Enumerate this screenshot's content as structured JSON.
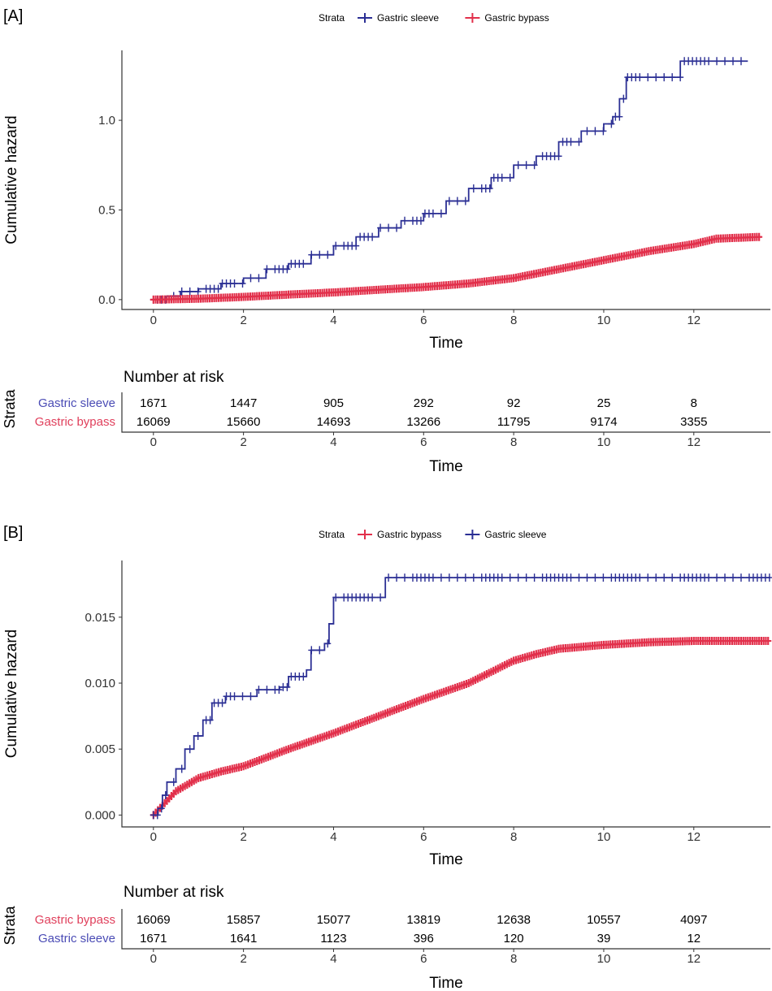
{
  "colors": {
    "sleeve": "#2b2f94",
    "bypass": "#e2304b",
    "sleeve_label": "#4b4cb5",
    "bypass_label": "#e0405c"
  },
  "chart_data": [
    {
      "type": "line",
      "panel_label": "[A]",
      "legend": {
        "title": "Strata",
        "position": "top",
        "entries": [
          "Gastric sleeve",
          "Gastric bypass"
        ]
      },
      "xlabel": "Time",
      "ylabel": "Cumulative hazard",
      "xlim": [
        -0.7,
        13.7
      ],
      "ylim": [
        -0.055,
        1.39
      ],
      "xticks": [
        "0",
        "2",
        "4",
        "6",
        "8",
        "10",
        "12"
      ],
      "yticks": [
        "0.0",
        "0.5",
        "1.0"
      ],
      "grid": false,
      "series": [
        {
          "name": "Gastric sleeve",
          "color_key": "sleeve",
          "step": true,
          "x": [
            0,
            0.3,
            0.6,
            1,
            1.5,
            2,
            2.5,
            3,
            3.5,
            4,
            4.5,
            5,
            5.5,
            6,
            6.5,
            7,
            7.5,
            8,
            8.5,
            9,
            9.5,
            10,
            10.2,
            10.35,
            10.5,
            11.6,
            11.7,
            13.2
          ],
          "y": [
            0,
            0.02,
            0.045,
            0.06,
            0.09,
            0.12,
            0.17,
            0.2,
            0.25,
            0.3,
            0.35,
            0.4,
            0.44,
            0.48,
            0.55,
            0.62,
            0.68,
            0.75,
            0.8,
            0.88,
            0.94,
            0.98,
            1.02,
            1.12,
            1.24,
            1.24,
            1.33,
            1.33
          ]
        },
        {
          "name": "Gastric bypass",
          "color_key": "bypass",
          "step": false,
          "x": [
            0,
            1,
            2,
            3,
            4,
            5,
            6,
            7,
            8,
            9,
            10,
            11,
            12,
            12.5,
            13.5
          ],
          "y": [
            0,
            0.005,
            0.015,
            0.028,
            0.04,
            0.055,
            0.07,
            0.09,
            0.12,
            0.17,
            0.22,
            0.27,
            0.31,
            0.34,
            0.35
          ]
        }
      ],
      "risk_table": {
        "title": "Number at risk",
        "strata_label": "Strata",
        "xlabel": "Time",
        "rows": [
          {
            "name": "Gastric sleeve",
            "color_key": "sleeve_label",
            "values": [
              "1671",
              "1447",
              "905",
              "292",
              "92",
              "25",
              "8"
            ]
          },
          {
            "name": "Gastric bypass",
            "color_key": "bypass_label",
            "values": [
              "16069",
              "15660",
              "14693",
              "13266",
              "11795",
              "9174",
              "3355"
            ]
          }
        ]
      }
    },
    {
      "type": "line",
      "panel_label": "[B]",
      "legend": {
        "title": "Strata",
        "position": "top",
        "entries": [
          "Gastric bypass",
          "Gastric sleeve"
        ]
      },
      "xlabel": "Time",
      "ylabel": "Cumulative hazard",
      "xlim": [
        -0.7,
        13.7
      ],
      "ylim": [
        -0.0009,
        0.0193
      ],
      "xticks": [
        "0",
        "2",
        "4",
        "6",
        "8",
        "10",
        "12"
      ],
      "yticks": [
        "0.000",
        "0.005",
        "0.010",
        "0.015"
      ],
      "grid": false,
      "series": [
        {
          "name": "Gastric bypass",
          "color_key": "bypass",
          "step": false,
          "x": [
            0,
            0.5,
            1,
            1.5,
            2,
            3,
            4,
            5,
            6,
            7,
            8,
            8.5,
            9,
            10,
            11,
            12,
            13.7
          ],
          "y": [
            0,
            0.0018,
            0.0028,
            0.0033,
            0.0037,
            0.005,
            0.0062,
            0.0075,
            0.0088,
            0.01,
            0.0117,
            0.0122,
            0.0126,
            0.0129,
            0.0131,
            0.0132,
            0.0132
          ]
        },
        {
          "name": "Gastric sleeve",
          "color_key": "sleeve",
          "step": true,
          "x": [
            0,
            0.1,
            0.2,
            0.3,
            0.5,
            0.7,
            0.9,
            1.1,
            1.3,
            1.6,
            2.3,
            2.8,
            3.0,
            3.4,
            3.5,
            3.8,
            3.9,
            4.0,
            5.1,
            5.15,
            13.7
          ],
          "y": [
            0,
            0.0005,
            0.0015,
            0.0025,
            0.0035,
            0.005,
            0.006,
            0.0072,
            0.0085,
            0.009,
            0.0095,
            0.0097,
            0.0105,
            0.011,
            0.0125,
            0.013,
            0.0145,
            0.0165,
            0.0165,
            0.018,
            0.018
          ]
        }
      ],
      "risk_table": {
        "title": "Number at risk",
        "strata_label": "Strata",
        "xlabel": "Time",
        "rows": [
          {
            "name": "Gastric bypass",
            "color_key": "bypass_label",
            "values": [
              "16069",
              "15857",
              "15077",
              "13819",
              "12638",
              "10557",
              "4097"
            ]
          },
          {
            "name": "Gastric sleeve",
            "color_key": "sleeve_label",
            "values": [
              "1671",
              "1641",
              "1123",
              "396",
              "120",
              "39",
              "12"
            ]
          }
        ]
      }
    }
  ]
}
